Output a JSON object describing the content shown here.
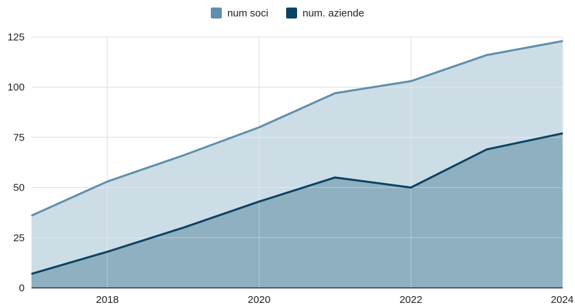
{
  "colors": {
    "soci_line": "#5f8fad",
    "soci_fill": "#cddde6",
    "aziende_line": "#0b4363",
    "aziende_fill": "#8fb0c0",
    "grid": "#cfcfcf",
    "axis": "#333333"
  },
  "chart_data": {
    "type": "area",
    "x": [
      2017,
      2018,
      2019,
      2020,
      2021,
      2022,
      2023,
      2024
    ],
    "series": [
      {
        "name": "num soci",
        "values": [
          36,
          53,
          66,
          80,
          97,
          103,
          116,
          123
        ]
      },
      {
        "name": "num. aziende",
        "values": [
          7,
          18,
          30,
          43,
          55,
          50,
          69,
          77
        ]
      }
    ],
    "x_tick_labels": [
      "2018",
      "2020",
      "2022",
      "2024"
    ],
    "y_tick_labels": [
      "0",
      "25",
      "50",
      "75",
      "100",
      "125"
    ],
    "xlim": [
      2017,
      2024
    ],
    "ylim": [
      0,
      125
    ],
    "grid": true,
    "legend_position": "top-center",
    "stacked": false
  }
}
